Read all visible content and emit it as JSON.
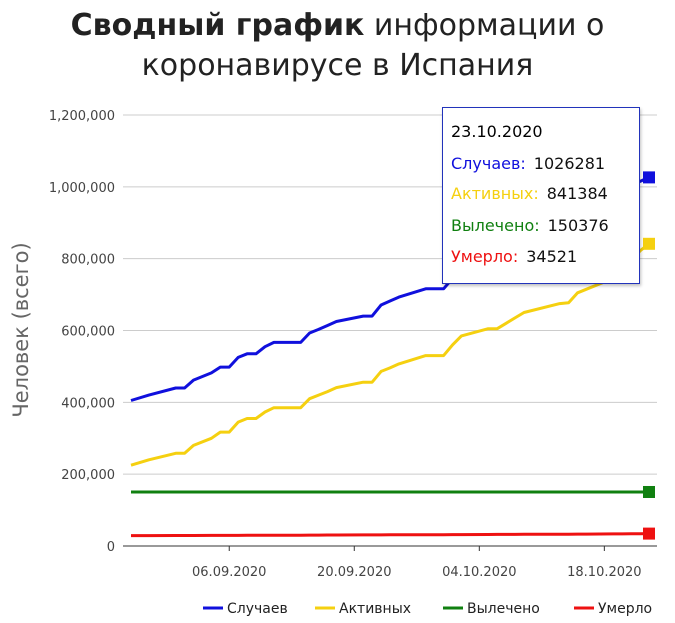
{
  "title": {
    "bold": "Сводный график",
    "rest": " информации о",
    "line2": "коронавирусе в Испания"
  },
  "chart_data": {
    "type": "line",
    "ylabel": "Человек (всего)",
    "xlabel": "",
    "ylim": [
      0,
      1200000
    ],
    "yticks": [
      0,
      200000,
      400000,
      600000,
      800000,
      1000000,
      1200000
    ],
    "ytick_labels": [
      "0",
      "200,000",
      "400,000",
      "600,000",
      "800,000",
      "1,000,000",
      "1,200,000"
    ],
    "xlim": [
      "2020-08-26",
      "2020-10-23"
    ],
    "xtick_labels": [
      {
        "date": "2020-09-06",
        "label": "06.09.2020"
      },
      {
        "date": "2020-09-20",
        "label": "20.09.2020"
      },
      {
        "date": "2020-10-04",
        "label": "04.10.2020"
      },
      {
        "date": "2020-10-18",
        "label": "18.10.2020"
      }
    ],
    "x": [
      "2020-08-26",
      "2020-08-28",
      "2020-08-31",
      "2020-09-01",
      "2020-09-02",
      "2020-09-04",
      "2020-09-05",
      "2020-09-06",
      "2020-09-07",
      "2020-09-08",
      "2020-09-09",
      "2020-09-10",
      "2020-09-11",
      "2020-09-14",
      "2020-09-15",
      "2020-09-16",
      "2020-09-17",
      "2020-09-18",
      "2020-09-21",
      "2020-09-22",
      "2020-09-23",
      "2020-09-24",
      "2020-09-25",
      "2020-09-28",
      "2020-09-29",
      "2020-09-30",
      "2020-10-01",
      "2020-10-02",
      "2020-10-05",
      "2020-10-06",
      "2020-10-07",
      "2020-10-08",
      "2020-10-09",
      "2020-10-13",
      "2020-10-14",
      "2020-10-15",
      "2020-10-16",
      "2020-10-19",
      "2020-10-20",
      "2020-10-21",
      "2020-10-22",
      "2020-10-23"
    ],
    "series": [
      {
        "name": "Случаев",
        "color": "#1010dd",
        "values": [
          405000,
          420000,
          440000,
          440000,
          462000,
          482000,
          498000,
          498000,
          525000,
          535000,
          535000,
          555000,
          567000,
          567000,
          593000,
          603000,
          614000,
          625000,
          640000,
          640000,
          671000,
          682000,
          693000,
          716000,
          716000,
          716000,
          745000,
          770000,
          790000,
          810000,
          825000,
          840000,
          861000,
          880000,
          896000,
          909000,
          921000,
          975000,
          990000,
          1005000,
          1015000,
          1026281
        ]
      },
      {
        "name": "Активных",
        "color": "#f5d010",
        "values": [
          225000,
          240000,
          258000,
          258000,
          280000,
          300000,
          317000,
          317000,
          345000,
          355000,
          355000,
          373000,
          385000,
          385000,
          410000,
          420000,
          430000,
          441000,
          456000,
          456000,
          486000,
          496000,
          507000,
          530000,
          530000,
          530000,
          560000,
          585000,
          605000,
          605000,
          620000,
          635000,
          650000,
          675000,
          677000,
          705000,
          715000,
          745000,
          770000,
          795000,
          822000,
          841384
        ]
      },
      {
        "name": "Вылечено",
        "color": "#108010",
        "values": [
          150376,
          150376,
          150376,
          150376,
          150376,
          150376,
          150376,
          150376,
          150376,
          150376,
          150376,
          150376,
          150376,
          150376,
          150376,
          150376,
          150376,
          150376,
          150376,
          150376,
          150376,
          150376,
          150376,
          150376,
          150376,
          150376,
          150376,
          150376,
          150376,
          150376,
          150376,
          150376,
          150376,
          150376,
          150376,
          150376,
          150376,
          150376,
          150376,
          150376,
          150376,
          150376
        ]
      },
      {
        "name": "Умерло",
        "color": "#ee1111",
        "values": [
          28900,
          29000,
          29100,
          29200,
          29300,
          29400,
          29500,
          29500,
          29600,
          29700,
          29800,
          29900,
          30000,
          30200,
          30300,
          30400,
          30500,
          30600,
          30800,
          30900,
          31000,
          31100,
          31200,
          31400,
          31500,
          31600,
          31700,
          31800,
          32100,
          32200,
          32300,
          32400,
          32500,
          32800,
          32900,
          33000,
          33100,
          33600,
          33800,
          34000,
          34300,
          34521
        ]
      }
    ],
    "legend": "bottom-right",
    "grid": true,
    "tooltip": {
      "date": "23.10.2020",
      "rows": [
        {
          "label": "Случаев:",
          "value": "1026281",
          "color": "#1010dd"
        },
        {
          "label": "Активных:",
          "value": "841384",
          "color": "#f5d010"
        },
        {
          "label": "Вылечено:",
          "value": "150376",
          "color": "#108010"
        },
        {
          "label": "Умерло:",
          "value": "34521",
          "color": "#ee1111"
        }
      ]
    }
  }
}
